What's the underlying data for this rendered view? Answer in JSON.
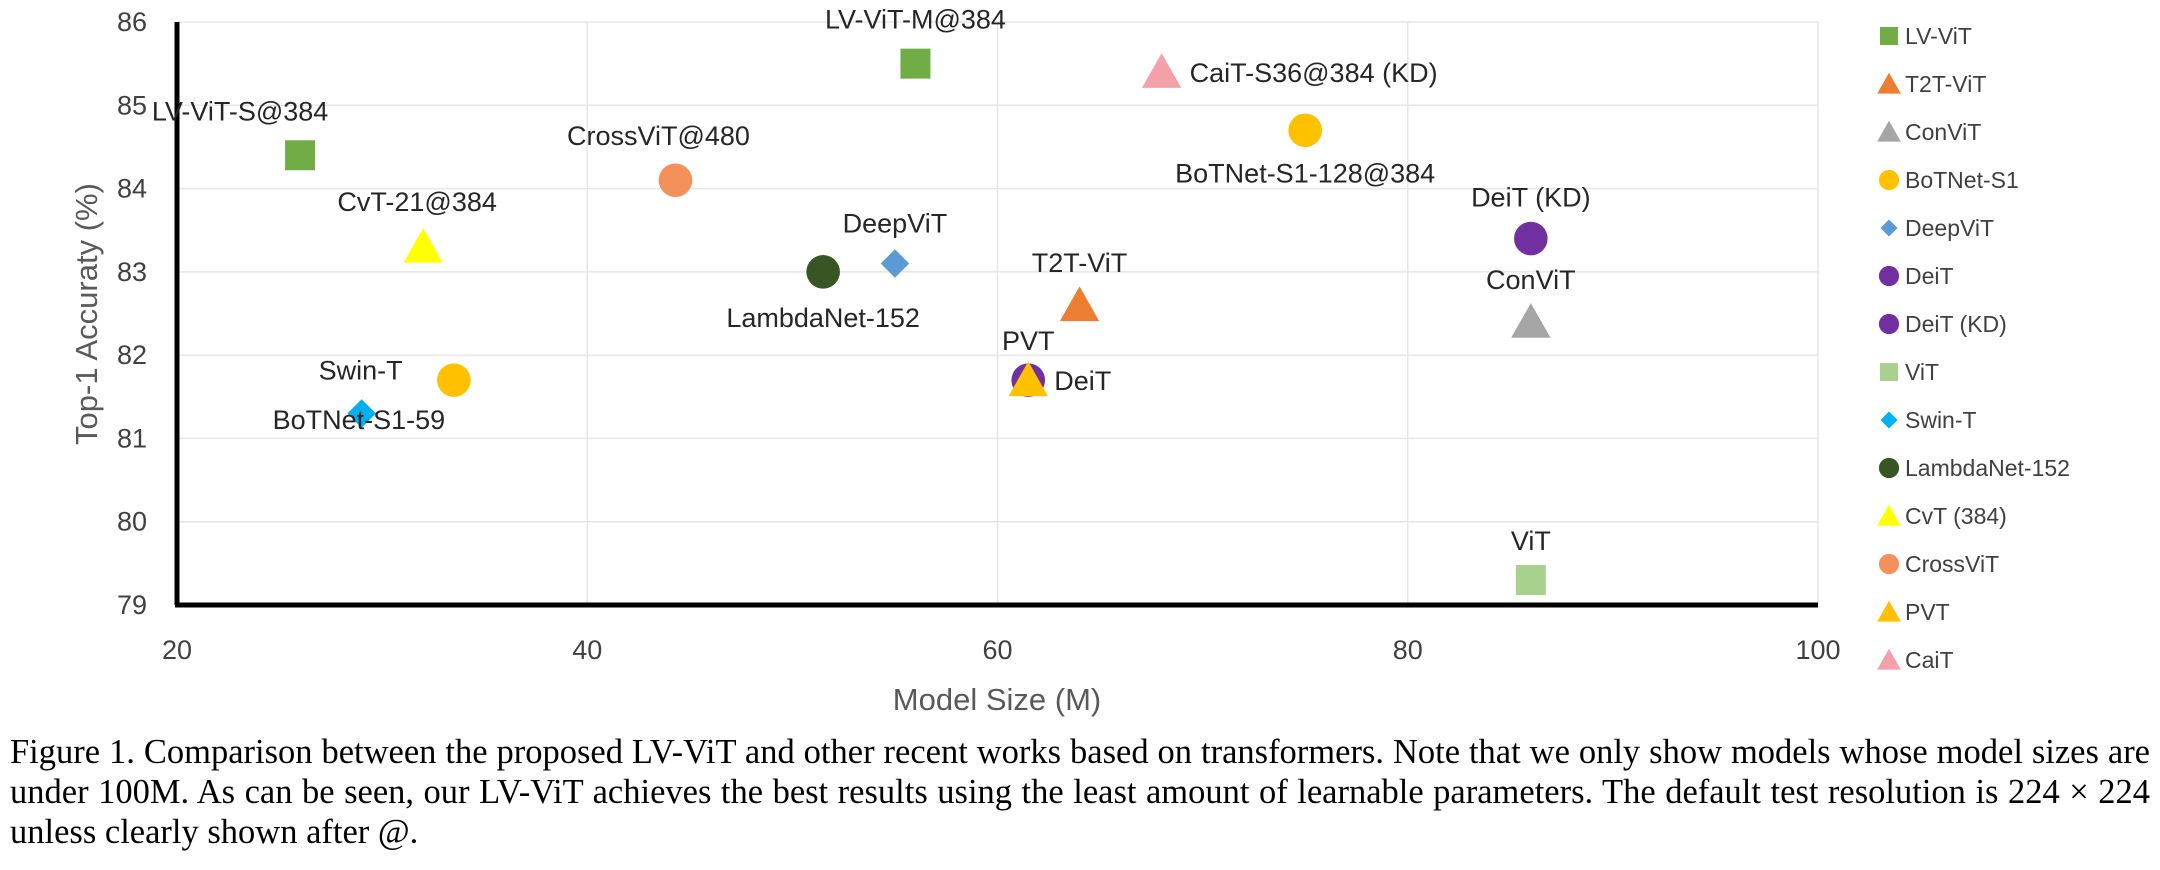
{
  "chart_data": {
    "type": "scatter",
    "xlabel": "Model Size (M)",
    "ylabel": "Top-1 Accuraty (%)",
    "xlim": [
      20,
      100
    ],
    "ylim": [
      79,
      86
    ],
    "x_ticks": [
      "20",
      "40",
      "60",
      "80",
      "100"
    ],
    "y_ticks": [
      "79",
      "80",
      "81",
      "82",
      "83",
      "84",
      "85",
      "86"
    ],
    "grid": true,
    "legend_position": "right",
    "series": [
      {
        "name": "LV-ViT",
        "marker": "square",
        "color": "#70ad47",
        "points": [
          {
            "x": 26,
            "y": 84.4,
            "label": "LV-ViT-S@384"
          },
          {
            "x": 56,
            "y": 85.5,
            "label": "LV-ViT-M@384"
          }
        ]
      },
      {
        "name": "T2T-ViT",
        "marker": "triangle",
        "color": "#ed7d31",
        "points": [
          {
            "x": 64,
            "y": 82.6,
            "label": "T2T-ViT"
          }
        ]
      },
      {
        "name": "ConViT",
        "marker": "triangle",
        "color": "#a5a5a5",
        "points": [
          {
            "x": 86,
            "y": 82.4,
            "label": "ConViT"
          }
        ]
      },
      {
        "name": "BoTNet-S1",
        "marker": "circle",
        "color": "#ffc000",
        "points": [
          {
            "x": 33.5,
            "y": 81.7,
            "label": "BoTNet-S1-59"
          },
          {
            "x": 75,
            "y": 84.7,
            "label": "BoTNet-S1-128@384"
          }
        ]
      },
      {
        "name": "DeepViT",
        "marker": "diamond",
        "color": "#5b9bd5",
        "points": [
          {
            "x": 55,
            "y": 83.1,
            "label": "DeepViT"
          }
        ]
      },
      {
        "name": "DeiT",
        "marker": "circle",
        "color": "#7030a0",
        "points": [
          {
            "x": 61.5,
            "y": 81.7,
            "label": "DeiT"
          }
        ]
      },
      {
        "name": "DeiT (KD)",
        "marker": "circle",
        "color": "#7030a0",
        "points": [
          {
            "x": 86,
            "y": 83.4,
            "label": "DeiT (KD)"
          }
        ]
      },
      {
        "name": "ViT",
        "marker": "square",
        "color": "#a9d18e",
        "points": [
          {
            "x": 86,
            "y": 79.3,
            "label": "ViT"
          }
        ]
      },
      {
        "name": "Swin-T",
        "marker": "diamond",
        "color": "#00b0f0",
        "points": [
          {
            "x": 29,
            "y": 81.3,
            "label": "Swin-T"
          }
        ]
      },
      {
        "name": "LambdaNet-152",
        "marker": "circle",
        "color": "#375623",
        "points": [
          {
            "x": 51.5,
            "y": 83.0,
            "label": "LambdaNet-152"
          }
        ]
      },
      {
        "name": "CvT (384)",
        "marker": "triangle",
        "color": "#ffff00",
        "points": [
          {
            "x": 32,
            "y": 83.3,
            "label": "CvT-21@384"
          }
        ]
      },
      {
        "name": "CrossViT",
        "marker": "circle",
        "color": "#f4915b",
        "points": [
          {
            "x": 44.3,
            "y": 84.1,
            "label": "CrossViT@480"
          }
        ]
      },
      {
        "name": "PVT",
        "marker": "triangle",
        "color": "#ffc000",
        "points": [
          {
            "x": 61.5,
            "y": 81.7,
            "label": "PVT"
          }
        ]
      },
      {
        "name": "CaiT",
        "marker": "triangle",
        "color": "#f4a0a8",
        "points": [
          {
            "x": 68,
            "y": 85.4,
            "label": "CaiT-S36@384 (KD)"
          }
        ]
      }
    ]
  },
  "caption": "Figure 1. Comparison between the proposed LV-ViT and other recent works based on transformers. Note that we only show models whose model sizes are under 100M. As can be seen, our LV-ViT achieves the best results using the least amount of learnable parameters. The default test resolution is 224 × 224 unless clearly shown after @."
}
